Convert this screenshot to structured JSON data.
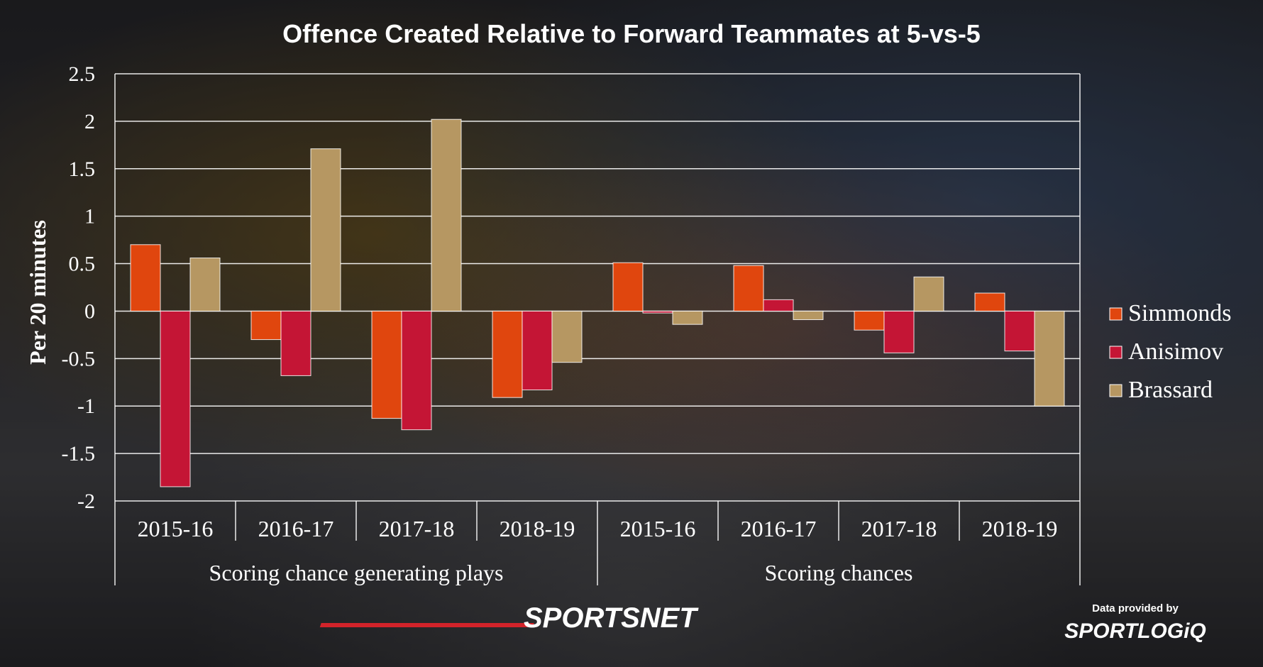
{
  "chart_data": {
    "type": "bar",
    "title": "Offence Created Relative to Forward Teammates at 5-vs-5",
    "ylabel": "Per 20 minutes",
    "xlabel": "",
    "ylim": [
      -2,
      2.5
    ],
    "yticks": [
      2.5,
      2,
      1.5,
      1,
      0.5,
      0,
      -0.5,
      -1,
      -1.5,
      -2
    ],
    "ytick_labels": [
      "2.5",
      "2",
      "1.5",
      "1",
      "0.5",
      "0",
      "-0.5",
      "-1",
      "-1.5",
      "-2"
    ],
    "grid": true,
    "legend": "right",
    "categories": [
      "2015-16",
      "2016-17",
      "2017-18",
      "2018-19",
      "2015-16",
      "2016-17",
      "2017-18",
      "2018-19"
    ],
    "groups": [
      {
        "label": "Scoring chance generating plays",
        "count": 4
      },
      {
        "label": "Scoring chances",
        "count": 4
      }
    ],
    "series": [
      {
        "name": "Simmonds",
        "color": "#e0460e",
        "values": [
          0.7,
          -0.3,
          -1.13,
          -0.91,
          0.51,
          0.48,
          -0.2,
          0.19
        ]
      },
      {
        "name": "Anisimov",
        "color": "#c41535",
        "values": [
          -1.85,
          -0.68,
          -1.25,
          -0.83,
          -0.02,
          0.12,
          -0.44,
          -0.42
        ]
      },
      {
        "name": "Brassard",
        "color": "#b69762",
        "values": [
          0.56,
          1.71,
          2.02,
          -0.54,
          -0.14,
          -0.09,
          0.36,
          -1.0
        ]
      }
    ]
  },
  "branding": {
    "publisher": "SPORTSNET",
    "credit_line": "Data provided by",
    "data_provider": "SPORTLOGiQ"
  }
}
